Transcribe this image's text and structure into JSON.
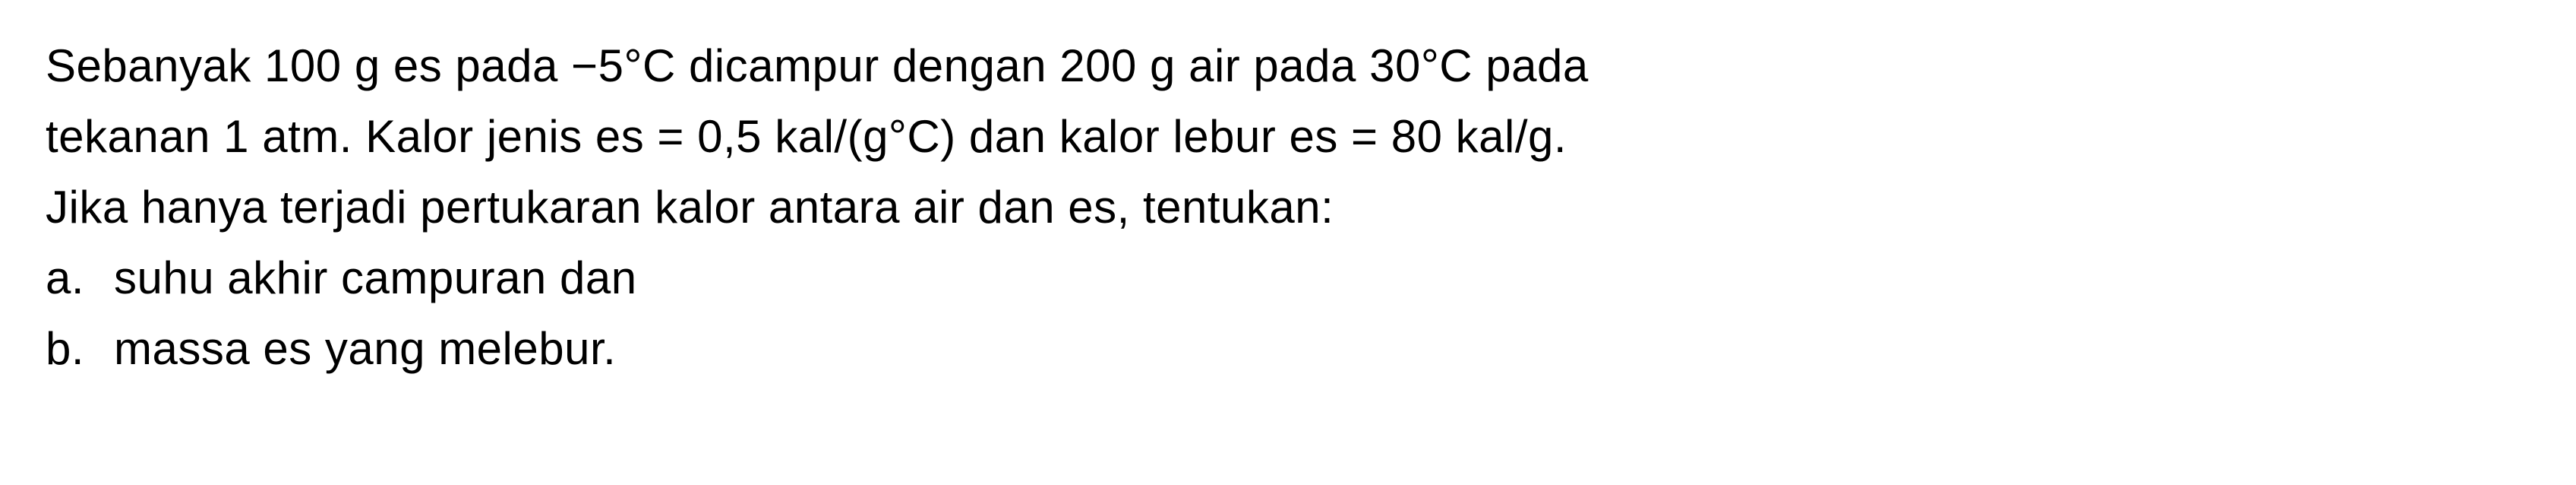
{
  "problem": {
    "line1": "Sebanyak 100 g es pada −5°C dicampur dengan 200 g air pada 30°C pada",
    "line2": "tekanan 1 atm. Kalor jenis es = 0,5 kal/(g°C) dan kalor lebur es = 80 kal/g.",
    "line3": "Jika hanya terjadi pertukaran kalor antara air dan es, tentukan:",
    "itemA": {
      "label": "a.",
      "text": "suhu akhir campuran dan"
    },
    "itemB": {
      "label": "b.",
      "text": "massa es yang melebur."
    }
  },
  "styling": {
    "font_size": 60,
    "line_height": 1.55,
    "text_color": "#000000",
    "background_color": "#ffffff",
    "font_family": "Arial, Helvetica, sans-serif"
  }
}
